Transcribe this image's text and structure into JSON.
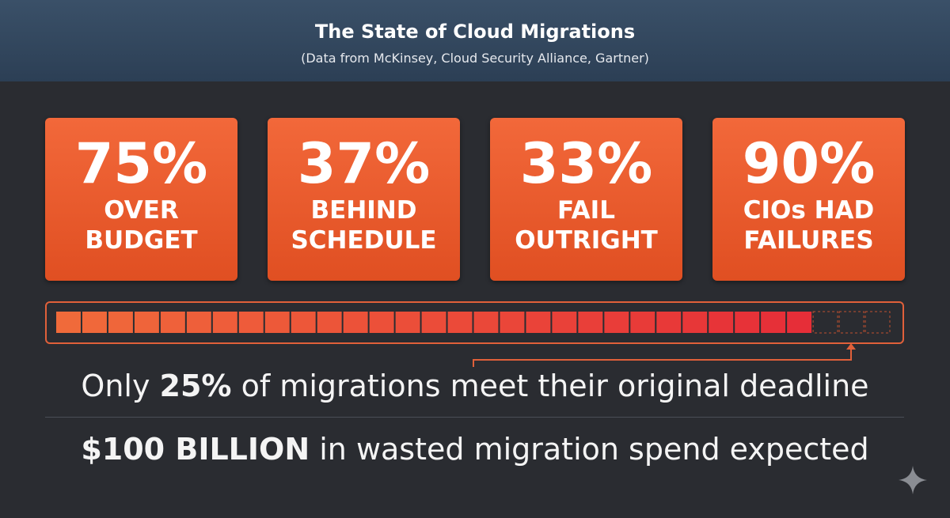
{
  "header": {
    "title": "The State of Cloud Migrations",
    "subtitle": "(Data from McKinsey, Cloud Security Alliance, Gartner)"
  },
  "cards": [
    {
      "value": "75%",
      "label": [
        "OVER",
        "BUDGET"
      ]
    },
    {
      "value": "37%",
      "label": [
        "BEHIND",
        "SCHEDULE"
      ]
    },
    {
      "value": "33%",
      "label": [
        "FAIL",
        "OUTRIGHT"
      ]
    },
    {
      "value": "90%",
      "label": [
        "CIOs HAD",
        "FAILURES"
      ]
    }
  ],
  "deadline": {
    "before": "Only ",
    "highlight": "25%",
    "after": " of migrations meet their original deadline"
  },
  "spend": {
    "highlight": "$100 BILLION",
    "after": " in wasted migration spend expected"
  }
}
